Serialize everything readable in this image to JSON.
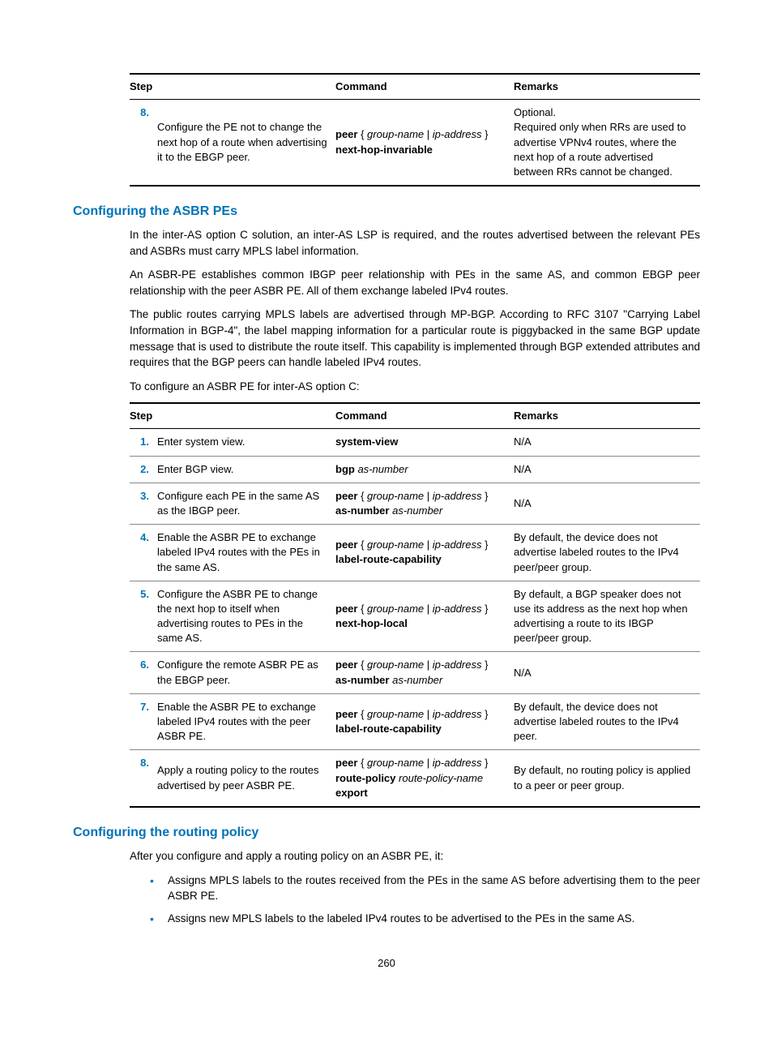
{
  "table1": {
    "headers": {
      "step": "Step",
      "command": "Command",
      "remarks": "Remarks"
    },
    "row": {
      "num": "8.",
      "step_text": "Configure the PE not to change the next hop of a route when advertising it to the EBGP peer.",
      "cmd_html": "<b>peer</b> { <i>group-name</i> | <i>ip-address</i> } <b>next-hop-invariable</b>",
      "remarks_html": "Optional.<br>Required only when RRs are used to advertise VPNv4 routes, where the next hop of a route advertised between RRs cannot be changed."
    }
  },
  "section1": {
    "heading": "Configuring the ASBR PEs",
    "p1": "In the inter-AS option C solution, an inter-AS LSP is required, and the routes advertised between the relevant PEs and ASBRs must carry MPLS label information.",
    "p2": "An ASBR-PE establishes common IBGP peer relationship with PEs in the same AS, and common EBGP peer relationship with the peer ASBR PE. All of them exchange labeled IPv4 routes.",
    "p3": "The public routes carrying MPLS labels are advertised through MP-BGP. According to RFC 3107 \"Carrying Label Information in BGP-4\", the label mapping information for a particular route is piggybacked in the same BGP update message that is used to distribute the route itself. This capability is implemented through BGP extended attributes and requires that the BGP peers can handle labeled IPv4 routes.",
    "p4": "To configure an ASBR PE for inter-AS option C:"
  },
  "table2": {
    "headers": {
      "step": "Step",
      "command": "Command",
      "remarks": "Remarks"
    },
    "rows": [
      {
        "num": "1.",
        "step_text": "Enter system view.",
        "cmd_html": "<b>system-view</b>",
        "remarks": "N/A"
      },
      {
        "num": "2.",
        "step_text": "Enter BGP view.",
        "cmd_html": "<b>bgp</b> <i>as-number</i>",
        "remarks": "N/A"
      },
      {
        "num": "3.",
        "step_text": "Configure each PE in the same AS as the IBGP peer.",
        "cmd_html": "<b>peer</b> { <i>group-name</i> | <i>ip-address</i> } <b>as-number</b> <i>as-number</i>",
        "remarks": "N/A"
      },
      {
        "num": "4.",
        "step_text": "Enable the ASBR PE to exchange labeled IPv4 routes with the PEs in the same AS.",
        "cmd_html": "<b>peer</b> { <i>group-name</i> | <i>ip-address</i> } <b>label-route-capability</b>",
        "remarks": "By default, the device does not advertise labeled routes to the IPv4 peer/peer group."
      },
      {
        "num": "5.",
        "step_text": "Configure the ASBR PE to change the next hop to itself when advertising routes to PEs in the same AS.",
        "cmd_html": "<b>peer</b> { <i>group-name</i> | <i>ip-address</i> } <b>next-hop-local</b>",
        "remarks": "By default, a BGP speaker does not use its address as the next hop when advertising a route to its IBGP peer/peer group."
      },
      {
        "num": "6.",
        "step_text": "Configure the remote ASBR PE as the EBGP peer.",
        "cmd_html": "<b>peer</b> { <i>group-name</i> | <i>ip-address</i> } <b>as-number</b> <i>as-number</i>",
        "remarks": "N/A"
      },
      {
        "num": "7.",
        "step_text": "Enable the ASBR PE to exchange labeled IPv4 routes with the peer ASBR PE.",
        "cmd_html": "<b>peer</b> { <i>group-name</i> | <i>ip-address</i> } <b>label-route-capability</b>",
        "remarks": "By default, the device does not advertise labeled routes to the IPv4 peer."
      },
      {
        "num": "8.",
        "step_text": "Apply a routing policy to the routes advertised by peer ASBR PE.",
        "cmd_html": "<b>peer</b> { <i>group-name</i> | <i>ip-address</i> } <b>route-policy</b> <i>route-policy-name</i> <b>export</b>",
        "remarks": "By default, no routing policy is applied to a peer or peer group."
      }
    ]
  },
  "section2": {
    "heading": "Configuring the routing policy",
    "intro": "After you configure and apply a routing policy on an ASBR PE, it:",
    "bullets": [
      "Assigns MPLS labels to the routes received from the PEs in the same AS before advertising them to the peer ASBR PE.",
      "Assigns new MPLS labels to the labeled IPv4 routes to be advertised to the PEs in the same AS."
    ]
  },
  "page_number": "260"
}
